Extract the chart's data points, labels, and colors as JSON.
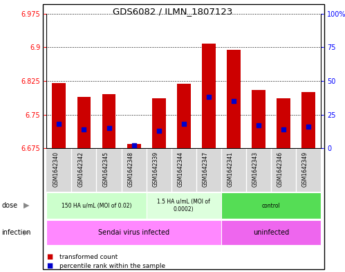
{
  "title": "GDS6082 / ILMN_1807123",
  "samples": [
    "GSM1642340",
    "GSM1642342",
    "GSM1642345",
    "GSM1642348",
    "GSM1642339",
    "GSM1642344",
    "GSM1642347",
    "GSM1642341",
    "GSM1642343",
    "GSM1642346",
    "GSM1642349"
  ],
  "transformed_counts": [
    6.82,
    6.79,
    6.795,
    6.685,
    6.787,
    6.818,
    6.908,
    6.895,
    6.805,
    6.787,
    6.8
  ],
  "percentile_ranks": [
    18,
    14,
    15,
    2,
    13,
    18,
    38,
    35,
    17,
    14,
    16
  ],
  "ylim_left": [
    6.675,
    6.975
  ],
  "ylim_right": [
    0,
    100
  ],
  "yticks_left": [
    6.675,
    6.75,
    6.825,
    6.9,
    6.975
  ],
  "yticks_right": [
    0,
    25,
    50,
    75,
    100
  ],
  "ytick_labels_right": [
    "0",
    "25",
    "50",
    "75",
    "100%"
  ],
  "bar_bottom": 6.675,
  "bar_color": "#cc0000",
  "dot_color": "#0000cc",
  "dot_size": 18,
  "dose_groups": [
    {
      "label": "150 HA u/mL (MOI of 0.02)",
      "indices": [
        0,
        1,
        2,
        3
      ],
      "color": "#ccffcc"
    },
    {
      "label": "1.5 HA u/mL (MOI of\n0.0002)",
      "indices": [
        4,
        5,
        6
      ],
      "color": "#ddffdd"
    },
    {
      "label": "control",
      "indices": [
        7,
        8,
        9,
        10
      ],
      "color": "#55dd55"
    }
  ],
  "infection_groups": [
    {
      "label": "Sendai virus infected",
      "indices": [
        0,
        1,
        2,
        3,
        4,
        5,
        6
      ],
      "color": "#ff88ff"
    },
    {
      "label": "uninfected",
      "indices": [
        7,
        8,
        9,
        10
      ],
      "color": "#ee66ee"
    }
  ],
  "legend_items": [
    {
      "label": "transformed count",
      "color": "#cc0000"
    },
    {
      "label": "percentile rank within the sample",
      "color": "#0000cc"
    }
  ],
  "bar_width": 0.55,
  "grid_color": "black",
  "background_color": "white"
}
